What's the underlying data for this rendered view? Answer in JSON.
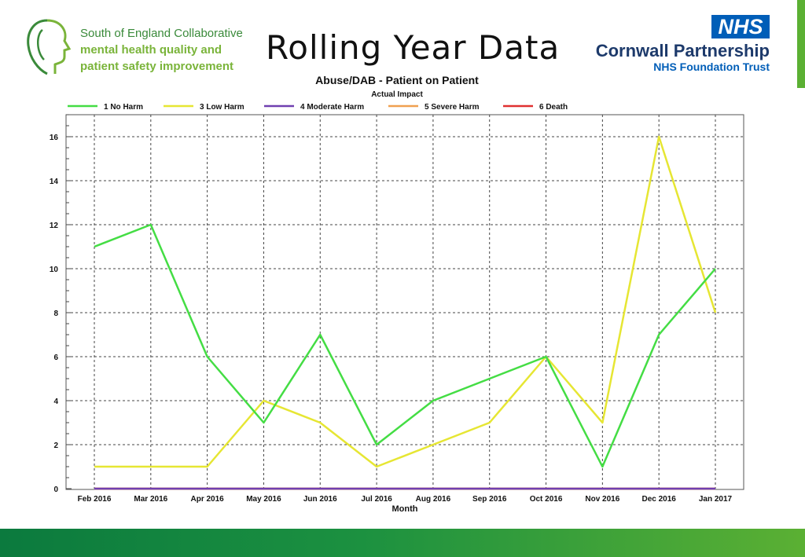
{
  "header": {
    "logo_line1": "South of England Collaborative",
    "logo_line2": "mental health quality and",
    "logo_line3": "patient safety improvement",
    "slide_title": "Rolling Year Data",
    "nhs_badge": "NHS",
    "org_name": "Cornwall Partnership",
    "org_sub": "NHS Foundation Trust"
  },
  "colors": {
    "accent_green": "#5bb033",
    "band_dark": "#0b7a3e",
    "nhs_blue": "#005eb8"
  },
  "chart_data": {
    "type": "line",
    "title": "Abuse/DAB - Patient on Patient",
    "subtitle": "Actual Impact",
    "xlabel": "Month",
    "ylabel": "",
    "categories": [
      "Feb 2016",
      "Mar 2016",
      "Apr 2016",
      "May 2016",
      "Jun 2016",
      "Jul 2016",
      "Aug 2016",
      "Sep 2016",
      "Oct 2016",
      "Nov 2016",
      "Dec 2016",
      "Jan 2017"
    ],
    "ylim": [
      0,
      17
    ],
    "yticks": [
      0,
      2,
      4,
      6,
      8,
      10,
      12,
      14,
      16
    ],
    "grid": true,
    "legend_position": "top",
    "series": [
      {
        "name": "1 No Harm",
        "color": "#44dd44",
        "values": [
          11,
          12,
          6,
          3,
          7,
          2,
          4,
          5,
          6,
          1,
          7,
          10
        ]
      },
      {
        "name": "3 Low Harm",
        "color": "#e6e633",
        "values": [
          1,
          1,
          1,
          4,
          3,
          1,
          2,
          3,
          6,
          3,
          16,
          8
        ]
      },
      {
        "name": "4 Moderate Harm",
        "color": "#7040b0",
        "values": [
          0,
          0,
          0,
          0,
          0,
          0,
          0,
          0,
          0,
          0,
          0,
          0
        ]
      },
      {
        "name": "5 Severe Harm",
        "color": "#f0a050",
        "values": [
          0,
          0,
          0,
          0,
          0,
          0,
          0,
          0,
          0,
          0,
          0,
          0
        ]
      },
      {
        "name": "6 Death",
        "color": "#e03030",
        "values": [
          0,
          0,
          0,
          0,
          0,
          0,
          0,
          0,
          0,
          0,
          0,
          0
        ]
      }
    ]
  }
}
